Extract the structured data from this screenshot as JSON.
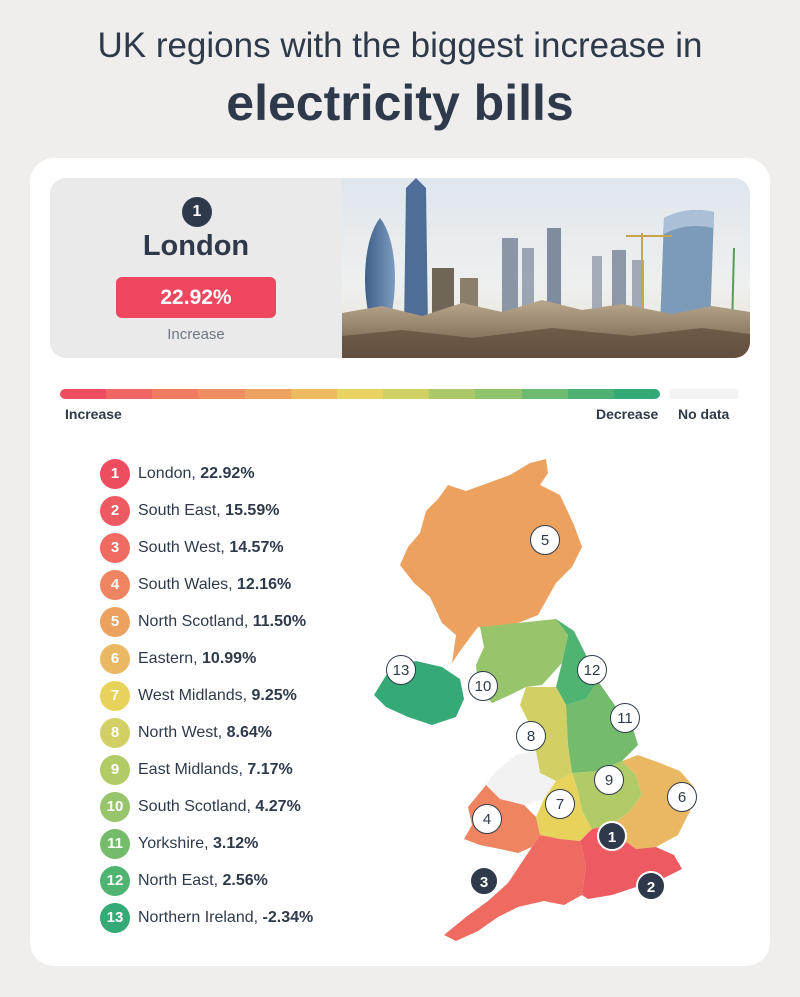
{
  "header": {
    "title_line1": "UK regions with the biggest increase in",
    "title_line2": "electricity bills"
  },
  "feature": {
    "rank": "1",
    "region": "London",
    "value": "22.92%",
    "caption": "Increase"
  },
  "scale": {
    "increase_label": "Increase",
    "decrease_label": "Decrease",
    "no_data_label": "No data",
    "colors": [
      "#ee4d60",
      "#ef6664",
      "#f07a62",
      "#ef8e60",
      "#eda35f",
      "#eebc60",
      "#e9d461",
      "#cfd164",
      "#acc969",
      "#8fc46d",
      "#6dba70",
      "#4fb074",
      "#33a978"
    ],
    "no_data_color": "#f2f2f2"
  },
  "regions": [
    {
      "rank": "1",
      "name": "London,",
      "value": "22.92%",
      "color": "#ee4d60"
    },
    {
      "rank": "2",
      "name": "South East,",
      "value": "15.59%",
      "color": "#ee5a62"
    },
    {
      "rank": "3",
      "name": "South West,",
      "value": "14.57%",
      "color": "#ef6b62"
    },
    {
      "rank": "4",
      "name": "South Wales,",
      "value": "12.16%",
      "color": "#ef8560"
    },
    {
      "rank": "5",
      "name": "North Scotland,",
      "value": "11.50%",
      "color": "#eda15e"
    },
    {
      "rank": "6",
      "name": "Eastern,",
      "value": "10.99%",
      "color": "#eab862"
    },
    {
      "rank": "7",
      "name": "West Midlands,",
      "value": "9.25%",
      "color": "#e7d25c"
    },
    {
      "rank": "8",
      "name": "North West,",
      "value": "8.64%",
      "color": "#d2d064"
    },
    {
      "rank": "9",
      "name": "East Midlands,",
      "value": "7.17%",
      "color": "#b1cc66"
    },
    {
      "rank": "10",
      "name": "South Scotland,",
      "value": "4.27%",
      "color": "#98c56b"
    },
    {
      "rank": "11",
      "name": "Yorkshire,",
      "value": "3.12%",
      "color": "#74bc6c"
    },
    {
      "rank": "12",
      "name": "North East,",
      "value": "2.56%",
      "color": "#4fb371"
    },
    {
      "rank": "13",
      "name": "Northern Ireland,",
      "value": "-2.34%",
      "color": "#35aa76"
    }
  ],
  "map_labels": [
    "1",
    "2",
    "3",
    "4",
    "5",
    "6",
    "7",
    "8",
    "9",
    "10",
    "11",
    "12",
    "13"
  ]
}
